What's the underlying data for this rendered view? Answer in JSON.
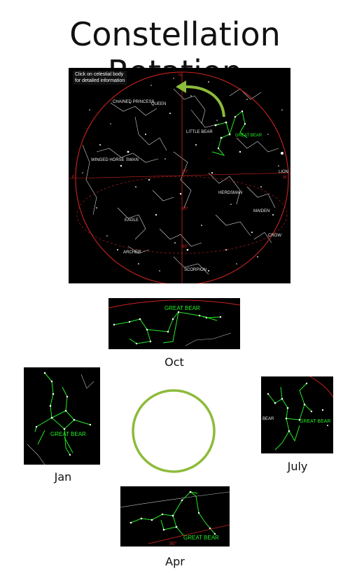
{
  "title": "Constellation Rotation",
  "main_chart": {
    "hint_line1": "Click on celestial body",
    "hint_line2": "for detailed information",
    "labels": {
      "chained_princess": "CHAINED PRINCESS",
      "queen": "QUEEN",
      "little_bear": "LITTLE BEAR",
      "great_bear": "GREAT BEAR",
      "winged_horse": "WINGED HORSE",
      "swan": "SWAN",
      "lion": "LION",
      "herdsman": "HERDSMAN",
      "maiden": "MAIDEN",
      "eagle": "EAGLE",
      "crow": "CROW",
      "archer": "ARCHER",
      "scorpion": "SCORPION",
      "north": "N",
      "east": "E",
      "west": "W",
      "deg_a": "30°",
      "deg_b": "60°",
      "deg_c": "90°"
    },
    "arrow_color": "#8dbb3a",
    "horizon_color": "#cc2222",
    "constellation_color": "#22ee22"
  },
  "views": {
    "oct": {
      "caption": "Oct",
      "label": "GREAT BEAR"
    },
    "jan": {
      "caption": "Jan",
      "label": "GREAT BEAR"
    },
    "july": {
      "caption": "July",
      "label": "GREAT BEAR",
      "side_label": "BEAR"
    },
    "apr": {
      "caption": "Apr",
      "label": "GREAT BEAR",
      "deg": "90°"
    }
  },
  "center_circle_color": "#8dbb3a"
}
